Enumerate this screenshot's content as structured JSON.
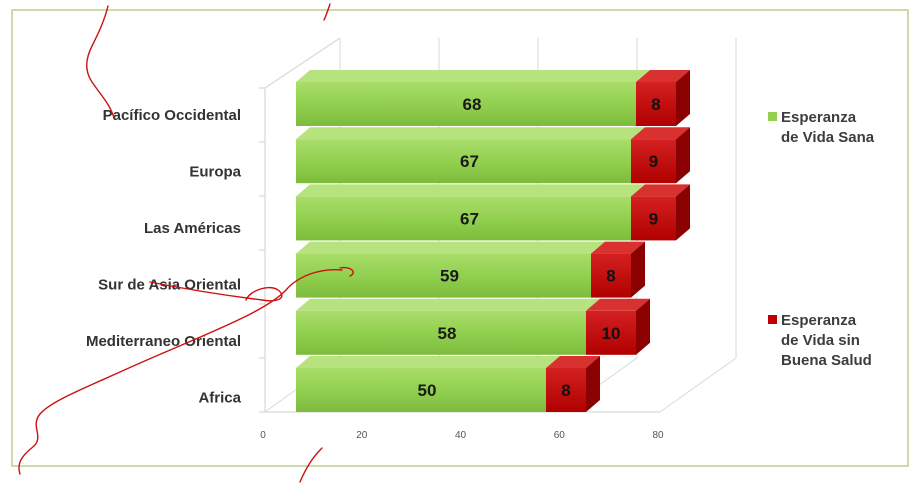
{
  "chart_data": {
    "type": "bar",
    "orientation": "horizontal",
    "stacked": true,
    "three_d": true,
    "categories": [
      "Pacífico Occidental",
      "Europa",
      "Las Américas",
      "Sur de Asia Oriental",
      "Mediterraneo Oriental",
      "Africa"
    ],
    "series": [
      {
        "name": "Esperanza de Vida Sana",
        "values": [
          68,
          67,
          67,
          59,
          58,
          50
        ],
        "color": "#92d050"
      },
      {
        "name": "Esperanza de Vida sin Buena Salud",
        "values": [
          8,
          9,
          9,
          8,
          10,
          8
        ],
        "color": "#c00000"
      }
    ],
    "xlim": [
      0,
      80
    ],
    "xticks": [
      "0",
      "20",
      "40",
      "60",
      "80"
    ],
    "grid": true,
    "legend_position": "right",
    "legend": [
      {
        "lines": [
          "Esperanza",
          "de Vida Sana"
        ]
      },
      {
        "lines": [
          "Esperanza",
          "de Vida sin",
          "Buena Salud"
        ]
      }
    ],
    "title": "",
    "xlabel": "",
    "ylabel": ""
  },
  "colors": {
    "frame_border": "#c9dcaa",
    "grid": "#d9d9d9",
    "annotation_ink": "#cc1111"
  }
}
